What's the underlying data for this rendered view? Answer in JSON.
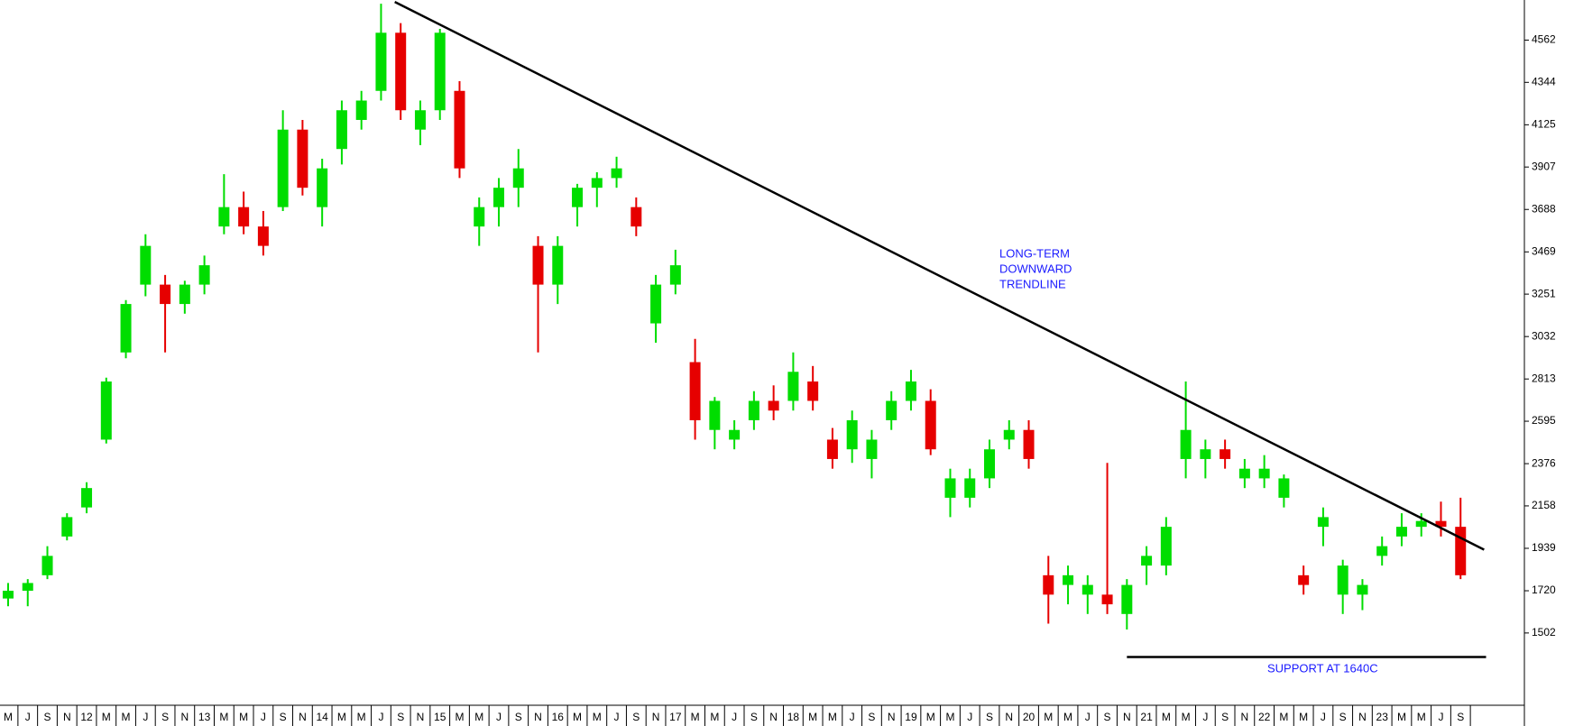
{
  "chart_data": {
    "type": "candlestick",
    "categories": [
      "M",
      "J",
      "S",
      "N",
      "12",
      "M",
      "M",
      "J",
      "S",
      "N",
      "13",
      "M",
      "M",
      "J",
      "S",
      "N",
      "14",
      "M",
      "M",
      "J",
      "S",
      "N",
      "15",
      "M",
      "M",
      "J",
      "S",
      "N",
      "16",
      "M",
      "M",
      "J",
      "S",
      "N",
      "17",
      "M",
      "M",
      "J",
      "S",
      "N",
      "18",
      "M",
      "M",
      "J",
      "S",
      "N",
      "19",
      "M",
      "M",
      "J",
      "S",
      "N",
      "20",
      "M",
      "M",
      "J",
      "S",
      "N",
      "21",
      "M",
      "M",
      "J",
      "S",
      "N",
      "22",
      "M",
      "M",
      "J",
      "S",
      "N",
      "23",
      "M",
      "M",
      "J",
      "S"
    ],
    "open": [
      1680,
      1720,
      1800,
      2000,
      2150,
      2500,
      2950,
      3300,
      3300,
      3200,
      3300,
      3600,
      3700,
      3600,
      3700,
      4100,
      3700,
      4000,
      4150,
      4300,
      4600,
      4100,
      4200,
      4300,
      3600,
      3700,
      3800,
      3500,
      3300,
      3700,
      3800,
      3850,
      3700,
      3100,
      3300,
      2900,
      2550,
      2500,
      2600,
      2700,
      2700,
      2800,
      2500,
      2450,
      2400,
      2600,
      2700,
      2700,
      2200,
      2200,
      2300,
      2500,
      2550,
      1800,
      1750,
      1700,
      1700,
      1600,
      1850,
      1850,
      2400,
      2400,
      2450,
      2300,
      2300,
      2200,
      1800,
      2050,
      1700,
      1700,
      1900,
      2000,
      2050,
      2080,
      2050
    ],
    "high": [
      1760,
      1780,
      1950,
      2120,
      2280,
      2820,
      3220,
      3560,
      3350,
      3320,
      3450,
      3870,
      3780,
      3680,
      4200,
      4150,
      3950,
      4250,
      4300,
      4750,
      4650,
      4250,
      4620,
      4350,
      3750,
      3850,
      4000,
      3550,
      3550,
      3820,
      3880,
      3960,
      3750,
      3350,
      3480,
      3020,
      2720,
      2600,
      2750,
      2780,
      2950,
      2880,
      2560,
      2650,
      2550,
      2750,
      2860,
      2760,
      2350,
      2350,
      2500,
      2600,
      2600,
      1900,
      1850,
      1800,
      2380,
      1780,
      1950,
      2100,
      2800,
      2500,
      2500,
      2400,
      2420,
      2320,
      1850,
      2150,
      1880,
      1780,
      2000,
      2120,
      2120,
      2180,
      2200
    ],
    "low": [
      1640,
      1640,
      1780,
      1980,
      2120,
      2480,
      2920,
      3240,
      2950,
      3150,
      3250,
      3560,
      3560,
      3450,
      3680,
      3760,
      3600,
      3920,
      4100,
      4250,
      4150,
      4020,
      4150,
      3850,
      3500,
      3600,
      3700,
      2950,
      3200,
      3600,
      3700,
      3800,
      3550,
      3000,
      3250,
      2500,
      2450,
      2450,
      2550,
      2600,
      2650,
      2650,
      2350,
      2380,
      2300,
      2550,
      2650,
      2420,
      2100,
      2150,
      2250,
      2450,
      2350,
      1550,
      1650,
      1600,
      1600,
      1520,
      1750,
      1800,
      2300,
      2300,
      2350,
      2250,
      2250,
      2150,
      1700,
      1950,
      1600,
      1620,
      1850,
      1950,
      2000,
      2000,
      1780
    ],
    "close": [
      1720,
      1760,
      1900,
      2100,
      2250,
      2800,
      3200,
      3500,
      3200,
      3300,
      3400,
      3700,
      3600,
      3500,
      4100,
      3800,
      3900,
      4200,
      4250,
      4600,
      4200,
      4200,
      4600,
      3900,
      3700,
      3800,
      3900,
      3300,
      3500,
      3800,
      3850,
      3900,
      3600,
      3300,
      3400,
      2600,
      2700,
      2550,
      2700,
      2650,
      2850,
      2700,
      2400,
      2600,
      2500,
      2700,
      2800,
      2450,
      2300,
      2300,
      2450,
      2550,
      2400,
      1700,
      1800,
      1750,
      1650,
      1750,
      1900,
      2050,
      2550,
      2450,
      2400,
      2350,
      2350,
      2300,
      1750,
      2100,
      1850,
      1750,
      1950,
      2050,
      2080,
      2050,
      1800
    ],
    "up_color": "#00dd00",
    "down_color": "#e60000",
    "ylim": [
      1129,
      4769
    ],
    "yticks": [
      1502,
      1720,
      1939,
      2158,
      2376,
      2595,
      2813,
      3032,
      3251,
      3469,
      3688,
      3907,
      4125,
      4344,
      4562
    ],
    "trendlines": [
      {
        "x": [
          19.7,
          75.2
        ],
        "y": [
          4759,
          1932
        ]
      },
      {
        "x": [
          57,
          75.3
        ],
        "y": [
          1378,
          1378
        ]
      }
    ],
    "annotations": [
      {
        "lines": [
          "LONG-TERM",
          "DOWNWARD",
          "TRENDLINE"
        ]
      },
      {
        "lines": [
          "SUPPORT AT 1640C"
        ]
      }
    ]
  }
}
